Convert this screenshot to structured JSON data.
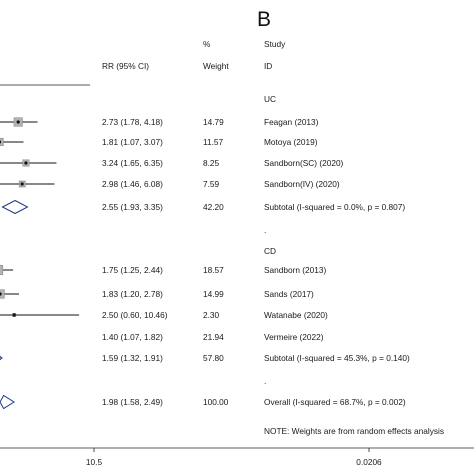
{
  "panel_label": "B",
  "headers": {
    "percent": "%",
    "study": "Study",
    "rr_ci": "RR (95% CI)",
    "weight": "Weight",
    "id": "ID"
  },
  "groups": [
    {
      "label": "UC"
    },
    {
      "label": "CD"
    }
  ],
  "separators": [
    ".",
    "."
  ],
  "note": "NOTE: Weights are from random effects analysis",
  "axis": {
    "ticks": [
      {
        "label": "10.5",
        "value": 10.5
      },
      {
        "label": "0.0206",
        "value": 0.0206
      }
    ]
  },
  "chart_data": {
    "type": "forest",
    "xlabel": "",
    "ylabel": "",
    "x_axis_tick_labels": [
      "10.5",
      "0.0206"
    ],
    "rows": [
      {
        "kind": "study",
        "study": "Feagan (2013)",
        "group": "UC",
        "rr": 2.73,
        "lower": 1.78,
        "upper": 4.18,
        "ci_text": "2.73 (1.78, 4.18)",
        "weight": 14.79,
        "weight_text": "14.79"
      },
      {
        "kind": "study",
        "study": "Motoya (2019)",
        "group": "UC",
        "rr": 1.81,
        "lower": 1.07,
        "upper": 3.07,
        "ci_text": "1.81 (1.07, 3.07)",
        "weight": 11.57,
        "weight_text": "11.57"
      },
      {
        "kind": "study",
        "study": "Sandborn(SC) (2020)",
        "group": "UC",
        "rr": 3.24,
        "lower": 1.65,
        "upper": 6.35,
        "ci_text": "3.24 (1.65, 6.35)",
        "weight": 8.25,
        "weight_text": "8.25"
      },
      {
        "kind": "study",
        "study": "Sandborn(IV) (2020)",
        "group": "UC",
        "rr": 2.98,
        "lower": 1.46,
        "upper": 6.08,
        "ci_text": "2.98 (1.46, 6.08)",
        "weight": 7.59,
        "weight_text": "7.59"
      },
      {
        "kind": "subtotal",
        "study": "Subtotal  (I-squared = 0.0%, p = 0.807)",
        "group": "UC",
        "rr": 2.55,
        "lower": 1.93,
        "upper": 3.35,
        "ci_text": "2.55 (1.93, 3.35)",
        "weight": 42.2,
        "weight_text": "42.20"
      },
      {
        "kind": "study",
        "study": "Sandborn (2013)",
        "group": "CD",
        "rr": 1.75,
        "lower": 1.25,
        "upper": 2.44,
        "ci_text": "1.75 (1.25, 2.44)",
        "weight": 18.57,
        "weight_text": "18.57"
      },
      {
        "kind": "study",
        "study": "Sands    (2017)",
        "group": "CD",
        "rr": 1.83,
        "lower": 1.2,
        "upper": 2.78,
        "ci_text": "1.83 (1.20, 2.78)",
        "weight": 14.99,
        "weight_text": "14.99"
      },
      {
        "kind": "study",
        "study": "Watanabe (2020)",
        "group": "CD",
        "rr": 2.5,
        "lower": 0.6,
        "upper": 10.46,
        "ci_text": "2.50 (0.60, 10.46)",
        "weight": 2.3,
        "weight_text": "2.30"
      },
      {
        "kind": "study",
        "study": "Vermeire (2022)",
        "group": "CD",
        "rr": 1.4,
        "lower": 1.07,
        "upper": 1.82,
        "ci_text": "1.40 (1.07, 1.82)",
        "weight": 21.94,
        "weight_text": "21.94"
      },
      {
        "kind": "subtotal",
        "study": "Subtotal  (I-squared = 45.3%, p = 0.140)",
        "group": "CD",
        "rr": 1.59,
        "lower": 1.32,
        "upper": 1.91,
        "ci_text": "1.59 (1.32, 1.91)",
        "weight": 57.8,
        "weight_text": "57.80"
      },
      {
        "kind": "overall",
        "study": "Overall  (I-squared = 68.7%, p = 0.002)",
        "group": "",
        "rr": 1.98,
        "lower": 1.58,
        "upper": 2.49,
        "ci_text": "1.98 (1.58, 2.49)",
        "weight": 100.0,
        "weight_text": "100.00"
      }
    ]
  }
}
